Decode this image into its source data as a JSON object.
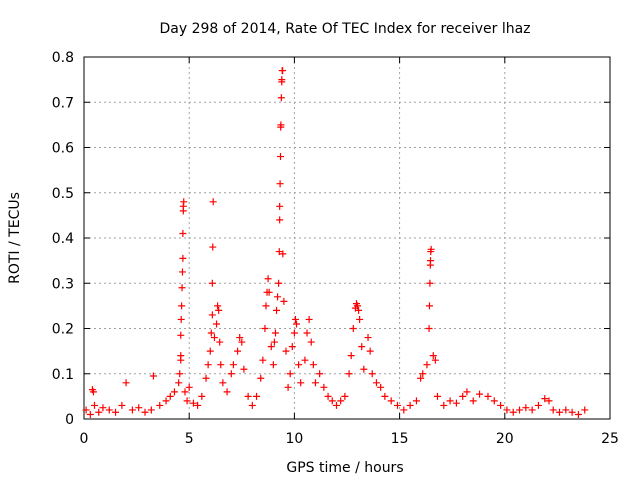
{
  "chart_data": {
    "type": "scatter",
    "title": "Day 298 of 2014, Rate Of TEC Index for receiver lhaz",
    "xlabel": "GPS time / hours",
    "ylabel": "ROTI / TECUs",
    "xlim": [
      0,
      25
    ],
    "ylim": [
      0,
      0.8
    ],
    "xticks": [
      0,
      5,
      10,
      15,
      20,
      25
    ],
    "yticks": [
      0,
      0.1,
      0.2,
      0.3,
      0.4,
      0.5,
      0.6,
      0.7,
      0.8
    ],
    "grid": true,
    "marker": "+",
    "color": "#ff0000",
    "series": [
      {
        "points": [
          [
            0.1,
            0.02
          ],
          [
            0.3,
            0.01
          ],
          [
            0.5,
            0.03
          ],
          [
            0.4,
            0.065
          ],
          [
            0.45,
            0.06
          ],
          [
            0.7,
            0.015
          ],
          [
            0.9,
            0.025
          ],
          [
            1.2,
            0.02
          ],
          [
            1.5,
            0.015
          ],
          [
            1.8,
            0.03
          ],
          [
            2.0,
            0.08
          ],
          [
            2.3,
            0.02
          ],
          [
            2.6,
            0.025
          ],
          [
            2.9,
            0.015
          ],
          [
            3.2,
            0.02
          ],
          [
            3.3,
            0.095
          ],
          [
            3.6,
            0.03
          ],
          [
            3.9,
            0.04
          ],
          [
            4.1,
            0.05
          ],
          [
            4.3,
            0.06
          ],
          [
            4.5,
            0.08
          ],
          [
            4.55,
            0.1
          ],
          [
            4.6,
            0.13
          ],
          [
            4.6,
            0.14
          ],
          [
            4.6,
            0.185
          ],
          [
            4.62,
            0.22
          ],
          [
            4.64,
            0.25
          ],
          [
            4.66,
            0.29
          ],
          [
            4.68,
            0.325
          ],
          [
            4.7,
            0.355
          ],
          [
            4.7,
            0.41
          ],
          [
            4.72,
            0.46
          ],
          [
            4.72,
            0.47
          ],
          [
            4.74,
            0.48
          ],
          [
            4.8,
            0.06
          ],
          [
            4.9,
            0.04
          ],
          [
            5.0,
            0.07
          ],
          [
            5.2,
            0.035
          ],
          [
            5.4,
            0.03
          ],
          [
            5.6,
            0.05
          ],
          [
            5.8,
            0.09
          ],
          [
            5.9,
            0.12
          ],
          [
            6.0,
            0.15
          ],
          [
            6.05,
            0.19
          ],
          [
            6.1,
            0.23
          ],
          [
            6.1,
            0.3
          ],
          [
            6.12,
            0.38
          ],
          [
            6.14,
            0.48
          ],
          [
            6.2,
            0.18
          ],
          [
            6.3,
            0.21
          ],
          [
            6.35,
            0.25
          ],
          [
            6.4,
            0.24
          ],
          [
            6.45,
            0.17
          ],
          [
            6.5,
            0.12
          ],
          [
            6.6,
            0.08
          ],
          [
            6.8,
            0.06
          ],
          [
            7.0,
            0.1
          ],
          [
            7.1,
            0.12
          ],
          [
            7.3,
            0.15
          ],
          [
            7.4,
            0.18
          ],
          [
            7.5,
            0.17
          ],
          [
            7.6,
            0.11
          ],
          [
            7.8,
            0.05
          ],
          [
            8.0,
            0.03
          ],
          [
            8.2,
            0.05
          ],
          [
            8.4,
            0.09
          ],
          [
            8.5,
            0.13
          ],
          [
            8.6,
            0.2
          ],
          [
            8.65,
            0.25
          ],
          [
            8.7,
            0.28
          ],
          [
            8.75,
            0.31
          ],
          [
            8.8,
            0.28
          ],
          [
            8.9,
            0.16
          ],
          [
            9.0,
            0.12
          ],
          [
            9.05,
            0.17
          ],
          [
            9.1,
            0.19
          ],
          [
            9.15,
            0.24
          ],
          [
            9.2,
            0.27
          ],
          [
            9.25,
            0.3
          ],
          [
            9.28,
            0.37
          ],
          [
            9.3,
            0.44
          ],
          [
            9.3,
            0.47
          ],
          [
            9.32,
            0.52
          ],
          [
            9.34,
            0.58
          ],
          [
            9.35,
            0.645
          ],
          [
            9.36,
            0.65
          ],
          [
            9.38,
            0.71
          ],
          [
            9.4,
            0.745
          ],
          [
            9.4,
            0.75
          ],
          [
            9.42,
            0.77
          ],
          [
            9.44,
            0.77
          ],
          [
            9.45,
            0.365
          ],
          [
            9.5,
            0.26
          ],
          [
            9.6,
            0.15
          ],
          [
            9.7,
            0.07
          ],
          [
            9.8,
            0.1
          ],
          [
            9.9,
            0.16
          ],
          [
            10.0,
            0.19
          ],
          [
            10.05,
            0.22
          ],
          [
            10.1,
            0.21
          ],
          [
            10.2,
            0.12
          ],
          [
            10.3,
            0.08
          ],
          [
            10.5,
            0.13
          ],
          [
            10.6,
            0.19
          ],
          [
            10.7,
            0.22
          ],
          [
            10.8,
            0.17
          ],
          [
            10.9,
            0.12
          ],
          [
            11.0,
            0.08
          ],
          [
            11.2,
            0.1
          ],
          [
            11.4,
            0.07
          ],
          [
            11.6,
            0.05
          ],
          [
            11.8,
            0.04
          ],
          [
            12.0,
            0.03
          ],
          [
            12.2,
            0.04
          ],
          [
            12.4,
            0.05
          ],
          [
            12.6,
            0.1
          ],
          [
            12.7,
            0.14
          ],
          [
            12.8,
            0.2
          ],
          [
            12.9,
            0.245
          ],
          [
            12.95,
            0.255
          ],
          [
            13.0,
            0.25
          ],
          [
            13.05,
            0.24
          ],
          [
            13.1,
            0.22
          ],
          [
            13.2,
            0.16
          ],
          [
            13.3,
            0.11
          ],
          [
            13.5,
            0.18
          ],
          [
            13.6,
            0.15
          ],
          [
            13.7,
            0.1
          ],
          [
            13.9,
            0.08
          ],
          [
            14.1,
            0.07
          ],
          [
            14.3,
            0.05
          ],
          [
            14.6,
            0.04
          ],
          [
            14.9,
            0.03
          ],
          [
            15.2,
            0.02
          ],
          [
            15.5,
            0.03
          ],
          [
            15.8,
            0.04
          ],
          [
            16.0,
            0.09
          ],
          [
            16.1,
            0.1
          ],
          [
            16.3,
            0.12
          ],
          [
            16.4,
            0.2
          ],
          [
            16.42,
            0.25
          ],
          [
            16.44,
            0.3
          ],
          [
            16.46,
            0.34
          ],
          [
            16.47,
            0.35
          ],
          [
            16.48,
            0.37
          ],
          [
            16.5,
            0.375
          ],
          [
            16.6,
            0.14
          ],
          [
            16.7,
            0.13
          ],
          [
            16.8,
            0.05
          ],
          [
            17.1,
            0.03
          ],
          [
            17.4,
            0.04
          ],
          [
            17.7,
            0.035
          ],
          [
            18.0,
            0.05
          ],
          [
            18.2,
            0.06
          ],
          [
            18.5,
            0.04
          ],
          [
            18.8,
            0.055
          ],
          [
            19.2,
            0.05
          ],
          [
            19.5,
            0.04
          ],
          [
            19.8,
            0.03
          ],
          [
            20.1,
            0.02
          ],
          [
            20.4,
            0.015
          ],
          [
            20.7,
            0.02
          ],
          [
            21.0,
            0.025
          ],
          [
            21.3,
            0.02
          ],
          [
            21.6,
            0.03
          ],
          [
            21.9,
            0.045
          ],
          [
            22.1,
            0.04
          ],
          [
            22.3,
            0.02
          ],
          [
            22.6,
            0.015
          ],
          [
            22.9,
            0.02
          ],
          [
            23.2,
            0.015
          ],
          [
            23.5,
            0.01
          ],
          [
            23.8,
            0.02
          ]
        ]
      }
    ]
  }
}
